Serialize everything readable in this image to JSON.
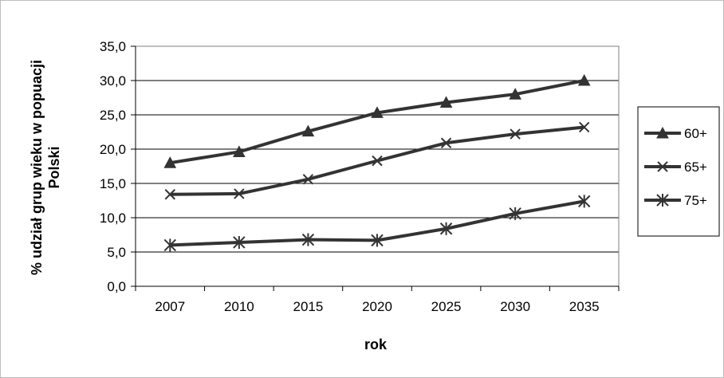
{
  "chart_data": {
    "type": "line",
    "title": "",
    "xlabel": "rok",
    "ylabel_line1": "% udział grup wieku w popuacji",
    "ylabel_line2": "Polski",
    "categories": [
      "2007",
      "2010",
      "2015",
      "2020",
      "2025",
      "2030",
      "2035"
    ],
    "ylim": [
      0,
      35
    ],
    "yticks": [
      "0,0",
      "5,0",
      "10,0",
      "15,0",
      "20,0",
      "25,0",
      "30,0",
      "35,0"
    ],
    "grid": true,
    "legend_position": "right",
    "series": [
      {
        "name": "60+",
        "marker": "triangle",
        "color": "#333333",
        "values": [
          18.0,
          19.6,
          22.6,
          25.3,
          26.8,
          28.0,
          30.0
        ]
      },
      {
        "name": "65+",
        "marker": "x",
        "color": "#333333",
        "values": [
          13.4,
          13.5,
          15.6,
          18.3,
          20.9,
          22.2,
          23.2
        ]
      },
      {
        "name": "75+",
        "marker": "star",
        "color": "#333333",
        "values": [
          6.0,
          6.4,
          6.8,
          6.7,
          8.4,
          10.6,
          12.4
        ]
      }
    ]
  }
}
